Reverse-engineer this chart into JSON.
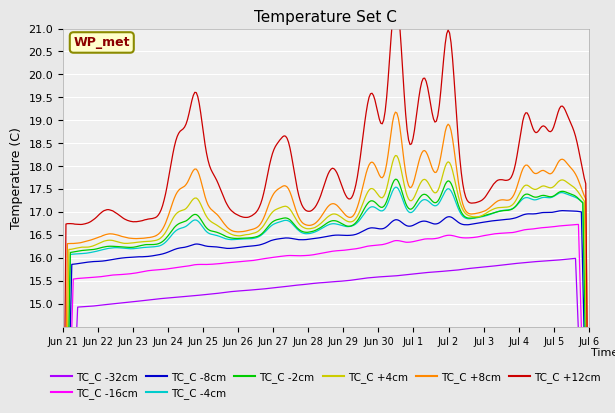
{
  "title": "Temperature Set C",
  "xlabel": "Time",
  "ylabel": "Temperature (C)",
  "ylim": [
    14.5,
    21.0
  ],
  "yticks": [
    15.0,
    15.5,
    16.0,
    16.5,
    17.0,
    17.5,
    18.0,
    18.5,
    19.0,
    19.5,
    20.0,
    20.5,
    21.0
  ],
  "bg_color": "#e8e8e8",
  "plot_bg": "#f0f0f0",
  "wp_met_label": "WP_met",
  "series": [
    {
      "label": "TC_C -32cm",
      "color": "#aa00ff"
    },
    {
      "label": "TC_C -16cm",
      "color": "#ff00ff"
    },
    {
      "label": "TC_C -8cm",
      "color": "#0000cc"
    },
    {
      "label": "TC_C -4cm",
      "color": "#00cccc"
    },
    {
      "label": "TC_C -2cm",
      "color": "#00cc00"
    },
    {
      "label": "TC_C +4cm",
      "color": "#cccc00"
    },
    {
      "label": "TC_C +8cm",
      "color": "#ff8800"
    },
    {
      "label": "TC_C +12cm",
      "color": "#cc0000"
    }
  ],
  "xtick_labels": [
    "Jun 21",
    "Jun 22",
    "Jun 23",
    "Jun 24",
    "Jun 25",
    "Jun 26",
    "Jun 27",
    "Jun 28",
    "Jun 29",
    "Jun 30",
    "Jul 1",
    "Jul 2",
    "Jul 3",
    "Jul 4",
    "Jul 5",
    "Jul 6"
  ]
}
